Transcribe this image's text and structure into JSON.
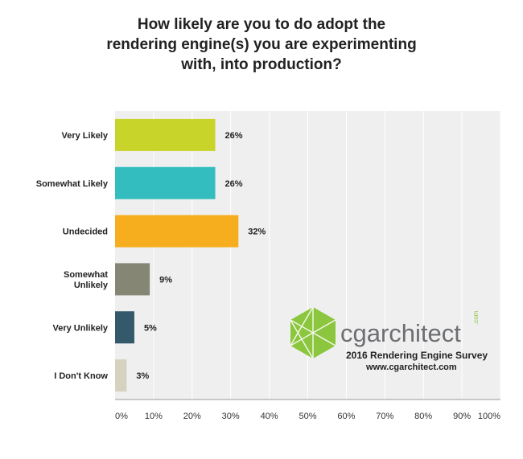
{
  "chart_data": {
    "type": "bar",
    "orientation": "horizontal",
    "title_lines": [
      "How likely are you to do adopt the",
      "rendering engine(s) you are experimenting",
      "with, into production?"
    ],
    "categories": [
      [
        "Very Likely"
      ],
      [
        "Somewhat Likely"
      ],
      [
        "Undecided"
      ],
      [
        "Somewhat",
        "Unlikely"
      ],
      [
        "Very Unlikely"
      ],
      [
        "I Don't Know"
      ]
    ],
    "values": [
      26,
      26,
      32,
      9,
      5,
      3
    ],
    "value_labels": [
      "26%",
      "26%",
      "32%",
      "9%",
      "5%",
      "3%"
    ],
    "colors": [
      "#c9d42a",
      "#33bdbf",
      "#f7ae1e",
      "#858673",
      "#33596a",
      "#d6d2bf"
    ],
    "xlim": [
      0,
      100
    ],
    "x_ticks": [
      0,
      10,
      20,
      30,
      40,
      50,
      60,
      70,
      80,
      90,
      100
    ],
    "x_tick_labels": [
      "0%",
      "10%",
      "20%",
      "30%",
      "40%",
      "50%",
      "60%",
      "70%",
      "80%",
      "90%",
      "100%"
    ],
    "grid": true,
    "plot_background": "#efefef",
    "gridline_color": "#ffffff"
  },
  "watermark": {
    "brand": "cgarchitect",
    "brand_suffix": ".com",
    "line1": "2016 Rendering Engine Survey",
    "line2": "www.cgarchitect.com",
    "logo_color": "#8cc63f",
    "brand_color": "#6d6e71"
  }
}
